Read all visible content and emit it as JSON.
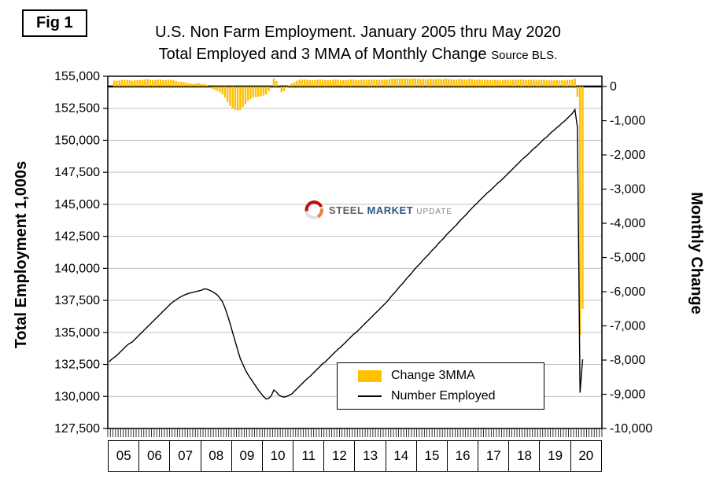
{
  "fig_label": "Fig 1",
  "title_line1": "U.S. Non Farm Employment. January 2005 thru May 2020",
  "title_line2": "Total Employed and 3 MMA of Monthly Change",
  "source_note": "Source BLS.",
  "left_axis_title": "Total Employment 1,000s",
  "right_axis_title": "Monthly Change",
  "legend": {
    "bar_label": "Change 3MMA",
    "line_label": "Number Employed"
  },
  "watermark": {
    "word1": "STEEL",
    "word2": "MARKET",
    "word3": "UPDATE"
  },
  "colors": {
    "bar": "#FFC000",
    "line": "#000000",
    "grid": "#BFBFBF",
    "axis": "#000000",
    "zero_line": "#000000"
  },
  "chart_data": {
    "type": "bar+line",
    "title": "U.S. Non Farm Employment. January 2005 thru May 2020 — Total Employed and 3 MMA of Monthly Change",
    "x_unit": "month",
    "x_start": "2005-01",
    "x_end": "2020-05",
    "x_domain_months": 192,
    "years": [
      "05",
      "06",
      "07",
      "08",
      "09",
      "10",
      "11",
      "12",
      "13",
      "14",
      "15",
      "16",
      "17",
      "18",
      "19",
      "20"
    ],
    "left_axis": {
      "label": "Total Employment 1,000s",
      "min": 127500,
      "max": 155000,
      "step": 2500,
      "tick_labels": [
        "155,000",
        "152,500",
        "150,000",
        "147,500",
        "145,000",
        "142,500",
        "140,000",
        "137,500",
        "135,000",
        "132,500",
        "130,000",
        "127,500"
      ]
    },
    "right_axis": {
      "label": "Monthly Change",
      "min": -10000,
      "max": 300,
      "step": 1000,
      "tick_labels": [
        "0",
        "-1,000",
        "-2,000",
        "-3,000",
        "-4,000",
        "-5,000",
        "-6,000",
        "-7,000",
        "-8,000",
        "-9,000",
        "-10,000"
      ]
    },
    "grid": true,
    "legend_position": "inside-bottom-center",
    "series": [
      {
        "name": "Change 3MMA",
        "type": "bar",
        "axis": "right",
        "color": "#FFC000",
        "values": [
          null,
          null,
          175,
          170,
          180,
          190,
          195,
          195,
          185,
          170,
          180,
          185,
          185,
          195,
          210,
          215,
          195,
          185,
          195,
          200,
          200,
          185,
          185,
          195,
          200,
          185,
          165,
          145,
          135,
          125,
          110,
          95,
          85,
          80,
          90,
          95,
          70,
          75,
          45,
          0,
          -65,
          -100,
          -125,
          -165,
          -225,
          -325,
          -450,
          -565,
          -650,
          -685,
          -700,
          -685,
          -600,
          -515,
          -415,
          -365,
          -315,
          -300,
          -300,
          -285,
          -265,
          -235,
          -135,
          15,
          235,
          165,
          15,
          -165,
          -135,
          -35,
          35,
          85,
          130,
          170,
          200,
          200,
          200,
          200,
          185,
          185,
          185,
          200,
          200,
          200,
          185,
          185,
          185,
          200,
          200,
          200,
          185,
          185,
          185,
          200,
          200,
          200,
          185,
          185,
          200,
          200,
          200,
          200,
          200,
          200,
          200,
          200,
          200,
          200,
          200,
          215,
          230,
          230,
          230,
          235,
          230,
          230,
          235,
          225,
          235,
          240,
          230,
          215,
          220,
          215,
          215,
          225,
          215,
          215,
          225,
          215,
          215,
          230,
          215,
          210,
          200,
          200,
          215,
          215,
          205,
          200,
          220,
          215,
          200,
          200,
          200,
          200,
          190,
          195,
          185,
          190,
          195,
          195,
          180,
          190,
          195,
          195,
          195,
          200,
          200,
          200,
          200,
          200,
          185,
          195,
          200,
          195,
          180,
          195,
          195,
          195,
          180,
          185,
          195,
          180,
          185,
          180,
          185,
          180,
          195,
          195,
          200,
          235,
          -300,
          -7265,
          -6500
        ]
      },
      {
        "name": "Number Employed",
        "type": "line",
        "axis": "left",
        "color": "#000000",
        "values": [
          132700,
          132900,
          133050,
          133200,
          133400,
          133600,
          133800,
          134000,
          134150,
          134250,
          134450,
          134650,
          134850,
          135050,
          135250,
          135450,
          135650,
          135850,
          136050,
          136250,
          136450,
          136650,
          136850,
          137050,
          137250,
          137400,
          137550,
          137680,
          137800,
          137900,
          137980,
          138050,
          138100,
          138150,
          138200,
          138250,
          138300,
          138400,
          138380,
          138300,
          138200,
          138080,
          137920,
          137700,
          137400,
          136950,
          136350,
          135700,
          135000,
          134300,
          133600,
          132950,
          132500,
          132050,
          131700,
          131400,
          131100,
          130800,
          130500,
          130250,
          130000,
          129800,
          129850,
          130050,
          130500,
          130350,
          130100,
          130000,
          129950,
          130000,
          130100,
          130200,
          130400,
          130600,
          130800,
          131000,
          131200,
          131400,
          131550,
          131750,
          131950,
          132150,
          132350,
          132550,
          132700,
          132900,
          133100,
          133300,
          133500,
          133700,
          133850,
          134050,
          134250,
          134450,
          134650,
          134850,
          135000,
          135200,
          135400,
          135600,
          135800,
          136000,
          136200,
          136400,
          136600,
          136800,
          137000,
          137200,
          137400,
          137650,
          137900,
          138100,
          138350,
          138600,
          138800,
          139050,
          139300,
          139500,
          139750,
          140000,
          140200,
          140400,
          140650,
          140850,
          141050,
          141300,
          141500,
          141700,
          141950,
          142150,
          142350,
          142600,
          142800,
          143000,
          143200,
          143400,
          143650,
          143850,
          144050,
          144250,
          144500,
          144700,
          144900,
          145100,
          145300,
          145500,
          145700,
          145900,
          146050,
          146250,
          146450,
          146650,
          146800,
          147000,
          147200,
          147400,
          147600,
          147800,
          148000,
          148200,
          148400,
          148600,
          148750,
          148950,
          149150,
          149350,
          149500,
          149700,
          149900,
          150100,
          150250,
          150450,
          150650,
          150800,
          151000,
          151150,
          151350,
          151500,
          151700,
          151900,
          152100,
          152400,
          151000,
          130300,
          132900
        ]
      }
    ]
  }
}
